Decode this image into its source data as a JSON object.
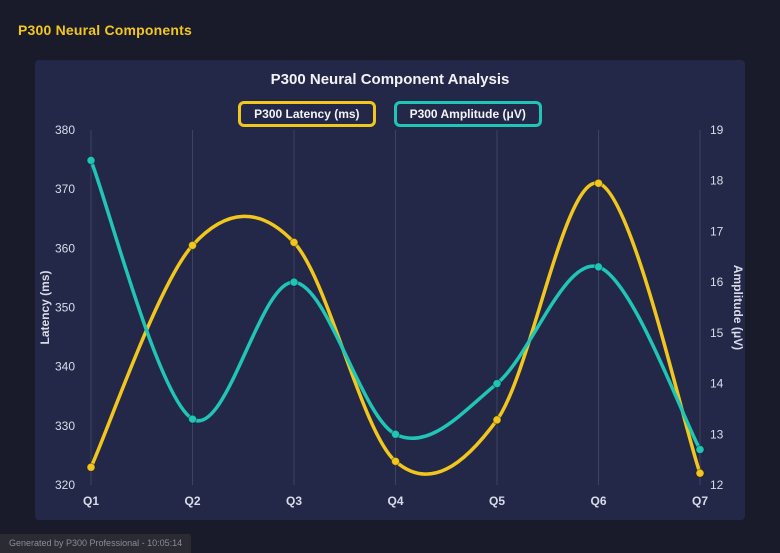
{
  "page": {
    "title": "P300 Neural Components",
    "footer": "Generated by P300 Professional - 10:05:14"
  },
  "colors": {
    "page_bg": "#1a1b2a",
    "panel_bg": "#232849",
    "accent_yellow": "#f2c71d",
    "accent_teal": "#20c5b5",
    "title_text": "#f2f3f8",
    "tick_text": "#d9dce8",
    "grid": "rgba(255,255,255,0.12)",
    "footer_bg": "#2a2b33",
    "footer_text": "#8a8d97"
  },
  "chart_data": {
    "type": "line",
    "title": "P300 Neural Component Analysis",
    "categories": [
      "Q1",
      "Q2",
      "Q3",
      "Q4",
      "Q5",
      "Q6",
      "Q7"
    ],
    "series": [
      {
        "name": "P300 Latency (ms)",
        "axis": "left",
        "color": "#f2c71d",
        "values": [
          323,
          360.5,
          361,
          324,
          331,
          371,
          322
        ]
      },
      {
        "name": "P300 Amplitude (μV)",
        "axis": "right",
        "color": "#20c5b5",
        "values": [
          18.4,
          13.3,
          16,
          13,
          14,
          16.3,
          12.7
        ]
      }
    ],
    "left_axis": {
      "label": "Latency (ms)",
      "min": 320,
      "max": 380,
      "ticks": [
        320,
        330,
        340,
        350,
        360,
        370,
        380
      ]
    },
    "right_axis": {
      "label": "Amplitude (μV)",
      "min": 12,
      "max": 19,
      "ticks": [
        12,
        13,
        14,
        15,
        16,
        17,
        18,
        19
      ]
    },
    "grid": "vertical",
    "legend_position": "top",
    "smooth": true
  }
}
